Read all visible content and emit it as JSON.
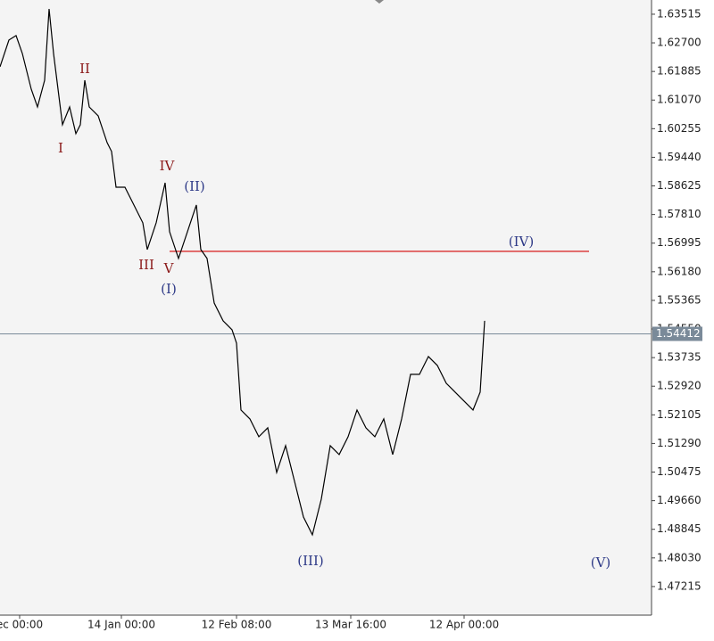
{
  "chart_data": {
    "type": "line",
    "x": [
      0,
      10,
      18,
      25,
      35,
      42,
      50,
      55,
      60,
      65,
      70,
      78,
      85,
      90,
      95,
      100,
      110,
      120,
      125,
      130,
      140,
      150,
      160,
      165,
      175,
      185,
      190,
      200,
      210,
      220,
      225,
      232,
      240,
      250,
      260,
      265,
      270,
      280,
      290,
      300,
      310,
      320,
      330,
      340,
      350,
      360,
      370,
      380,
      390,
      400,
      410,
      420,
      430,
      440,
      450,
      460,
      470,
      480,
      490,
      500,
      510,
      520,
      530,
      538,
      543
    ],
    "series": [
      {
        "color": "#000000",
        "values": [
          1.62017,
          1.62779,
          1.62906,
          1.62398,
          1.61382,
          1.60874,
          1.61636,
          1.63667,
          1.62398,
          1.61382,
          1.60367,
          1.60874,
          1.60113,
          1.60367,
          1.61636,
          1.60874,
          1.60621,
          1.59859,
          1.59605,
          1.58589,
          1.58589,
          1.58082,
          1.57574,
          1.56812,
          1.57574,
          1.58716,
          1.5732,
          1.56558,
          1.5732,
          1.58082,
          1.56812,
          1.56558,
          1.55289,
          1.54781,
          1.54527,
          1.54146,
          1.52242,
          1.51988,
          1.5148,
          1.51734,
          1.50465,
          1.51226,
          1.50211,
          1.49195,
          1.48687,
          1.49703,
          1.51226,
          1.50972,
          1.5148,
          1.52242,
          1.51734,
          1.5148,
          1.51988,
          1.50972,
          1.51988,
          1.53257,
          1.53257,
          1.53765,
          1.53511,
          1.53004,
          1.5275,
          1.52496,
          1.52242,
          1.5275,
          1.54781
        ]
      }
    ],
    "xlim": [
      0,
      730
    ],
    "xticks": [
      {
        "value": 22,
        "label": "ec 00:00"
      },
      {
        "value": 136,
        "label": "14 Jan 00:00"
      },
      {
        "value": 265,
        "label": "12 Feb 08:00"
      },
      {
        "value": 393,
        "label": "13 Mar 16:00"
      },
      {
        "value": 520,
        "label": "12 Apr 00:00"
      }
    ],
    "ylim": [
      1.464,
      1.6392
    ],
    "yticks": [
      1.63515,
      {
        "value": 1.627,
        "label": "1.62700"
      },
      1.61885,
      {
        "value": 1.6107,
        "label": "1.61070"
      },
      1.60255,
      {
        "value": 1.5944,
        "label": "1.59440"
      },
      1.58625,
      {
        "value": 1.5781,
        "label": "1.57810"
      },
      1.56995,
      {
        "value": 1.5618,
        "label": "1.56180"
      },
      1.55365,
      {
        "value": 1.5455,
        "label": "1.54550"
      },
      1.53735,
      {
        "value": 1.5292,
        "label": "1.52920"
      },
      1.52105,
      {
        "value": 1.5129,
        "label": "1.51290"
      },
      1.50475,
      {
        "value": 1.4966,
        "label": "1.49660"
      },
      1.48845,
      {
        "value": 1.4803,
        "label": "1.48030"
      },
      1.47215
    ],
    "level_line": {
      "value": 1.56761,
      "color": "#d40000"
    },
    "last_price": 1.54412,
    "annotations": [
      {
        "text": "I",
        "color": "#8b1a1a"
      },
      {
        "text": "II",
        "color": "#8b1a1a"
      },
      {
        "text": "III",
        "color": "#8b1a1a"
      },
      {
        "text": "IV",
        "color": "#8b1a1a"
      },
      {
        "text": "V",
        "color": "#8b1a1a"
      },
      {
        "text": "(I)",
        "color": "#2e3a87"
      },
      {
        "text": "(II)",
        "color": "#2e3a87"
      },
      {
        "text": "(III)",
        "color": "#2e3a87"
      },
      {
        "text": "(IV)",
        "color": "#2e3a87"
      },
      {
        "text": "(V)",
        "color": "#2e3a87"
      }
    ]
  }
}
